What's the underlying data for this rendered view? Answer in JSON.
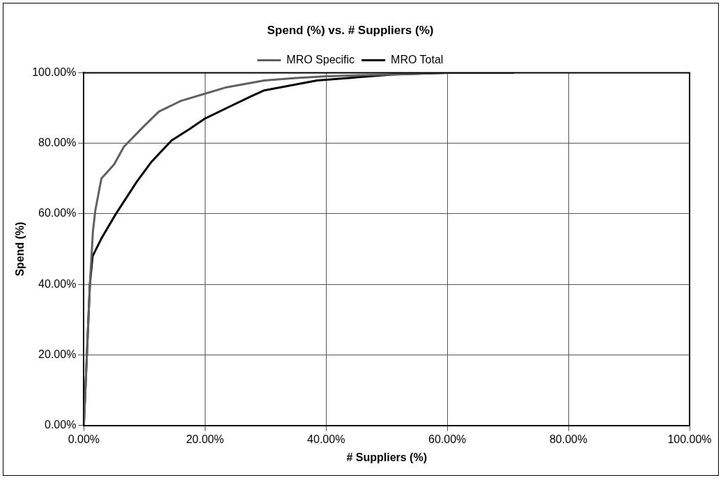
{
  "chart_data": {
    "type": "line",
    "title": "Spend (%) vs. # Suppliers (%)",
    "xlabel": "# Suppliers (%)",
    "ylabel": "Spend (%)",
    "series": [
      {
        "name": "MRO Specific",
        "color": "#606060",
        "x": [
          0,
          0.5,
          1,
          1.5,
          1.9,
          2.9,
          5,
          6.6,
          10,
          12.4,
          16,
          19.9,
          23.6,
          29.8,
          35,
          40,
          50,
          60,
          71
        ],
        "values": [
          0,
          20,
          40,
          55,
          61,
          70,
          74,
          79,
          85,
          89,
          92,
          94,
          95.9,
          97.8,
          98.5,
          99,
          99.5,
          100,
          100
        ]
      },
      {
        "name": "MRO Total",
        "color": "#000000",
        "x": [
          0,
          0.5,
          1,
          1.45,
          2.9,
          5.3,
          8.7,
          11.2,
          14.5,
          17.4,
          19.9,
          23.6,
          27.7,
          29.8,
          38.5,
          50.9,
          60,
          71
        ],
        "values": [
          0,
          20,
          40,
          48,
          53,
          60,
          69,
          74.8,
          80.8,
          84,
          86.9,
          90,
          93.4,
          95,
          97.8,
          99.5,
          100,
          100
        ]
      }
    ],
    "xlim": [
      0,
      100
    ],
    "xticks": [
      {
        "value": 0,
        "label": "0.00%"
      },
      {
        "value": 20,
        "label": "20.00%"
      },
      {
        "value": 40,
        "label": "40.00%"
      },
      {
        "value": 60,
        "label": "60.00%"
      },
      {
        "value": 80,
        "label": "80.00%"
      },
      {
        "value": 100,
        "label": "100.00%"
      }
    ],
    "ylim": [
      0,
      100
    ],
    "yticks": [
      {
        "value": 0,
        "label": "0.00%"
      },
      {
        "value": 20,
        "label": "20.00%"
      },
      {
        "value": 40,
        "label": "40.00%"
      },
      {
        "value": 60,
        "label": "60.00%"
      },
      {
        "value": 80,
        "label": "80.00%"
      },
      {
        "value": 100,
        "label": "100.00%"
      }
    ],
    "grid": true,
    "legend": "top",
    "marker": "none",
    "line_style": "solid"
  }
}
